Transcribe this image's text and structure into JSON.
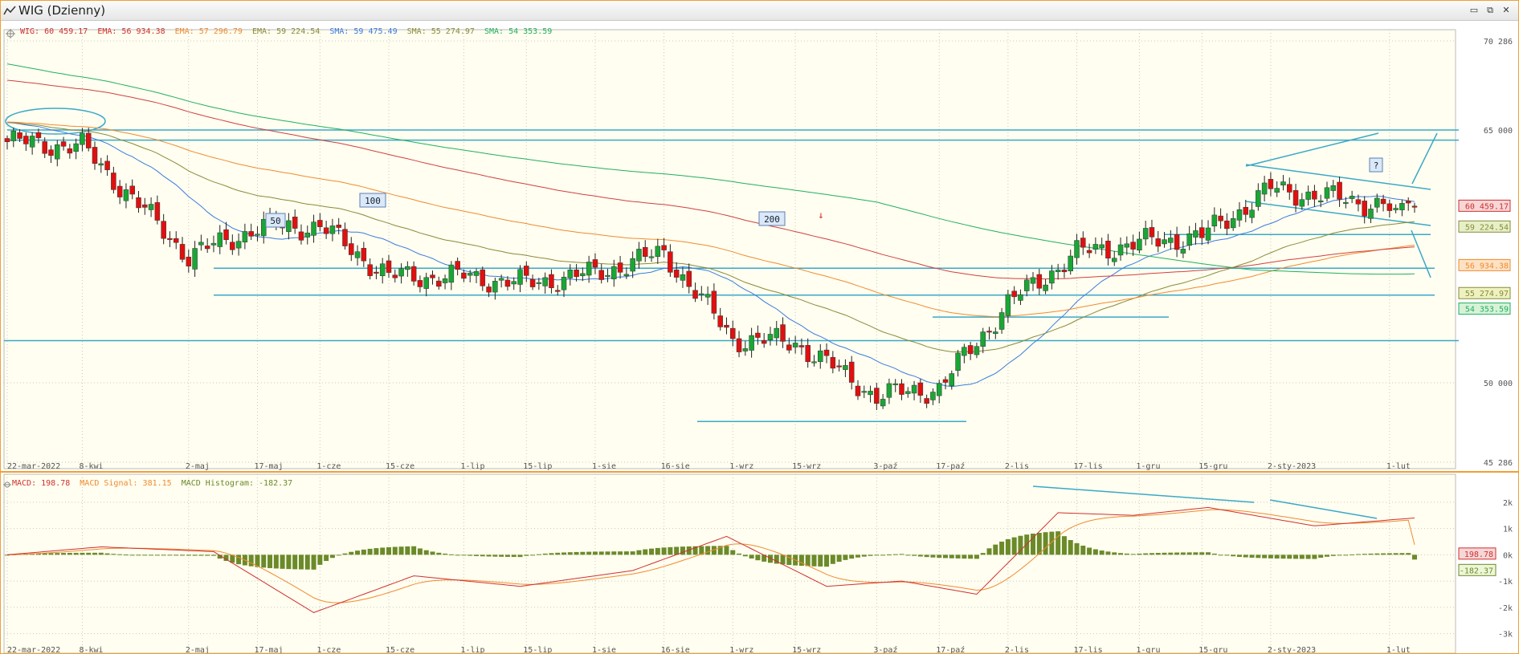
{
  "window": {
    "title": "WIG (Dzienny)",
    "controls": {
      "minimize": "▭",
      "restore": "⧉",
      "close": "✕"
    }
  },
  "colors": {
    "bull": "#1aa635",
    "bear": "#e01010",
    "grid": "#c8c8c8",
    "ema20": "#3a7be0",
    "ema50": "#8a8a3a",
    "ema100": "#f08a30",
    "ema200": "#d04040",
    "sma250": "#20b060",
    "trend": "#3aa8c8",
    "macd": "#d03030",
    "signal": "#f08a30",
    "hist": "#6b8a2a"
  },
  "price_panel": {
    "legend": [
      {
        "text": "WIG: 60 459.17",
        "color": "#d03030"
      },
      {
        "text": "EMA: 56 934.38",
        "color": "#d03030"
      },
      {
        "text": "EMA: 57 296.79",
        "color": "#f08a30"
      },
      {
        "text": "EMA: 59 224.54",
        "color": "#8a8a3a"
      },
      {
        "text": "SMA: 59 475.49",
        "color": "#3a7be0"
      },
      {
        "text": "SMA: 55 274.97",
        "color": "#8a8a3a"
      },
      {
        "text": "SMA: 54 353.59",
        "color": "#20b060"
      }
    ],
    "y_axis_labels": [
      "70 286",
      "65 000",
      "50 000",
      "45 286"
    ],
    "value_boxes": [
      "60 459.17",
      "59 224.54",
      "56 934.38",
      "55 274.97",
      "54 353.59"
    ],
    "annotations": [
      "50",
      "100",
      "200",
      "?"
    ]
  },
  "macd_panel": {
    "legend": [
      {
        "text": "MACD: 198.78",
        "color": "#d03030"
      },
      {
        "text": "MACD Signal: 381.15",
        "color": "#f08a30"
      },
      {
        "text": "MACD Histogram: -182.37",
        "color": "#6b8a2a"
      }
    ],
    "y_axis_labels": [
      "2k",
      "1k",
      "0k",
      "-1k",
      "-2k",
      "-3k"
    ],
    "value_boxes": [
      "198.78",
      "-182.37"
    ]
  },
  "x_axis_labels": [
    "22-mar-2022",
    "8-kwi",
    "2-maj",
    "17-maj",
    "1-cze",
    "15-cze",
    "1-lip",
    "15-lip",
    "1-sie",
    "16-sie",
    "1-wrz",
    "15-wrz",
    "3-paź",
    "17-paź",
    "2-lis",
    "17-lis",
    "1-gru",
    "15-gru",
    "2-sty-2023",
    "1-lut"
  ],
  "chart_data": {
    "type": "candlestick",
    "instrument": "WIG",
    "interval": "Dzienny",
    "close_anchors": {
      "x": [
        "22-mar-2022",
        "8-kwi",
        "2-maj",
        "17-maj",
        "1-cze",
        "15-cze",
        "1-lip",
        "15-lip",
        "1-sie",
        "16-sie",
        "1-wrz",
        "15-wrz",
        "3-paź",
        "17-paź",
        "2-lis",
        "17-lis",
        "1-gru",
        "15-gru",
        "2-sty-2023",
        "1-lut"
      ],
      "y": [
        64300,
        64000,
        57500,
        59200,
        59300,
        56300,
        56300,
        55900,
        56500,
        57700,
        52600,
        52400,
        49200,
        49700,
        54700,
        57700,
        58300,
        58700,
        61500,
        60500
      ]
    },
    "last": 60459.17,
    "ylim": [
      45286,
      70286
    ],
    "indicators": [
      {
        "name": "EMA",
        "value": 56934.38
      },
      {
        "name": "EMA",
        "value": 57296.79
      },
      {
        "name": "EMA",
        "value": 59224.54
      },
      {
        "name": "SMA",
        "value": 59475.49
      },
      {
        "name": "SMA",
        "value": 55274.97
      },
      {
        "name": "SMA",
        "value": 54353.59
      }
    ],
    "macd": {
      "macd": 198.78,
      "signal": 381.15,
      "histogram": -182.37,
      "ylim": [
        -3500,
        2300
      ]
    }
  }
}
